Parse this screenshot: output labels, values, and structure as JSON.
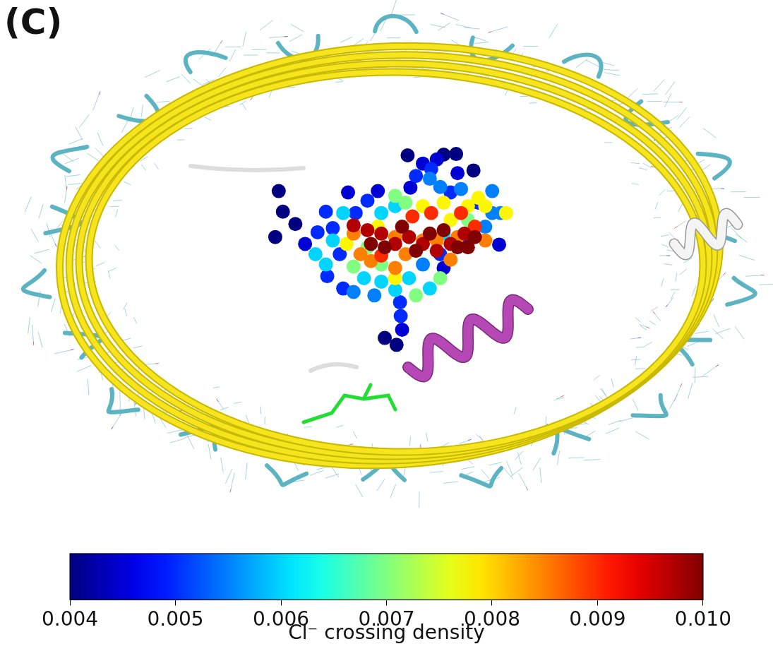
{
  "chart_data": {
    "type": "scatter",
    "panel": "(C)",
    "marker": "circle",
    "tick_labels": false,
    "grid": false,
    "xlim": [
      0,
      1095
    ],
    "ylim": [
      720,
      0
    ],
    "x": [
      578,
      630,
      648,
      392,
      398,
      416,
      387,
      673,
      545,
      562,
      650,
      492,
      535,
      582,
      630,
      710,
      570,
      600,
      620,
      430,
      612,
      590,
      520,
      503,
      460,
      448,
      470,
      480,
      462,
      485,
      567,
      640,
      680,
      660,
      625,
      568,
      500,
      530,
      700,
      690,
      600,
      610,
      625,
      655,
      700,
      712,
      560,
      540,
      470,
      445,
      460,
      515,
      540,
      580,
      610,
      560,
      630,
      485,
      560,
      575,
      520,
      540,
      500,
      590,
      625,
      665,
      600,
      630,
      665,
      690,
      490,
      560,
      535,
      640,
      680,
      720,
      500,
      510,
      525,
      600,
      620,
      650,
      560,
      575,
      640,
      560,
      690,
      675,
      655,
      612,
      585,
      540,
      500,
      520,
      540,
      560,
      580,
      600,
      620,
      640,
      660,
      675,
      545,
      570,
      630,
      650,
      590,
      610,
      525,
      665
    ],
    "y": [
      216,
      215,
      214,
      268,
      298,
      316,
      335,
      238,
      482,
      492,
      242,
      270,
      268,
      263,
      380,
      346,
      470,
      228,
      222,
      345,
      236,
      246,
      282,
      300,
      298,
      328,
      322,
      360,
      392,
      410,
      430,
      270,
      285,
      345,
      360,
      450,
      415,
      420,
      300,
      320,
      375,
      250,
      262,
      265,
      268,
      300,
      290,
      300,
      340,
      360,
      375,
      395,
      400,
      395,
      410,
      412,
      330,
      300,
      275,
      285,
      350,
      375,
      378,
      420,
      395,
      310,
      290,
      285,
      290,
      290,
      345,
      395,
      320,
      310,
      278,
      300,
      330,
      360,
      370,
      340,
      340,
      335,
      335,
      360,
      368,
      380,
      340,
      320,
      300,
      300,
      305,
      362,
      318,
      325,
      330,
      345,
      335,
      345,
      355,
      345,
      330,
      335,
      350,
      320,
      325,
      350,
      355,
      330,
      345,
      350
    ],
    "density": [
      0.004,
      0.004,
      0.004,
      0.004,
      0.004,
      0.004,
      0.004,
      0.004,
      0.004,
      0.004,
      0.0045,
      0.0045,
      0.0045,
      0.0045,
      0.0045,
      0.0045,
      0.0045,
      0.0045,
      0.0045,
      0.0045,
      0.005,
      0.005,
      0.005,
      0.005,
      0.005,
      0.005,
      0.005,
      0.005,
      0.005,
      0.005,
      0.005,
      0.005,
      0.005,
      0.005,
      0.005,
      0.005,
      0.0055,
      0.0055,
      0.0055,
      0.0055,
      0.0055,
      0.0055,
      0.0055,
      0.0055,
      0.0055,
      0.0055,
      0.006,
      0.006,
      0.006,
      0.006,
      0.006,
      0.006,
      0.006,
      0.006,
      0.006,
      0.006,
      0.006,
      0.006,
      0.007,
      0.007,
      0.007,
      0.007,
      0.007,
      0.007,
      0.007,
      0.007,
      0.0078,
      0.0078,
      0.0078,
      0.0078,
      0.0078,
      0.0078,
      0.0078,
      0.0078,
      0.0078,
      0.0078,
      0.0085,
      0.0085,
      0.0085,
      0.0085,
      0.0085,
      0.0085,
      0.0085,
      0.0085,
      0.0085,
      0.0085,
      0.0085,
      0.009,
      0.009,
      0.009,
      0.009,
      0.009,
      0.0097,
      0.0097,
      0.0097,
      0.0097,
      0.0097,
      0.0097,
      0.0097,
      0.0097,
      0.0097,
      0.01,
      0.01,
      0.01,
      0.01,
      0.01,
      0.01,
      0.01,
      0.01,
      0.01
    ],
    "colorbar": {
      "label": "Cl⁻ crossing density",
      "range": [
        0.004,
        0.01
      ],
      "ticks": [
        0.004,
        0.005,
        0.006,
        0.007,
        0.008,
        0.009,
        {
          "value": 0.01,
          "label": "0.010"
        }
      ]
    }
  }
}
